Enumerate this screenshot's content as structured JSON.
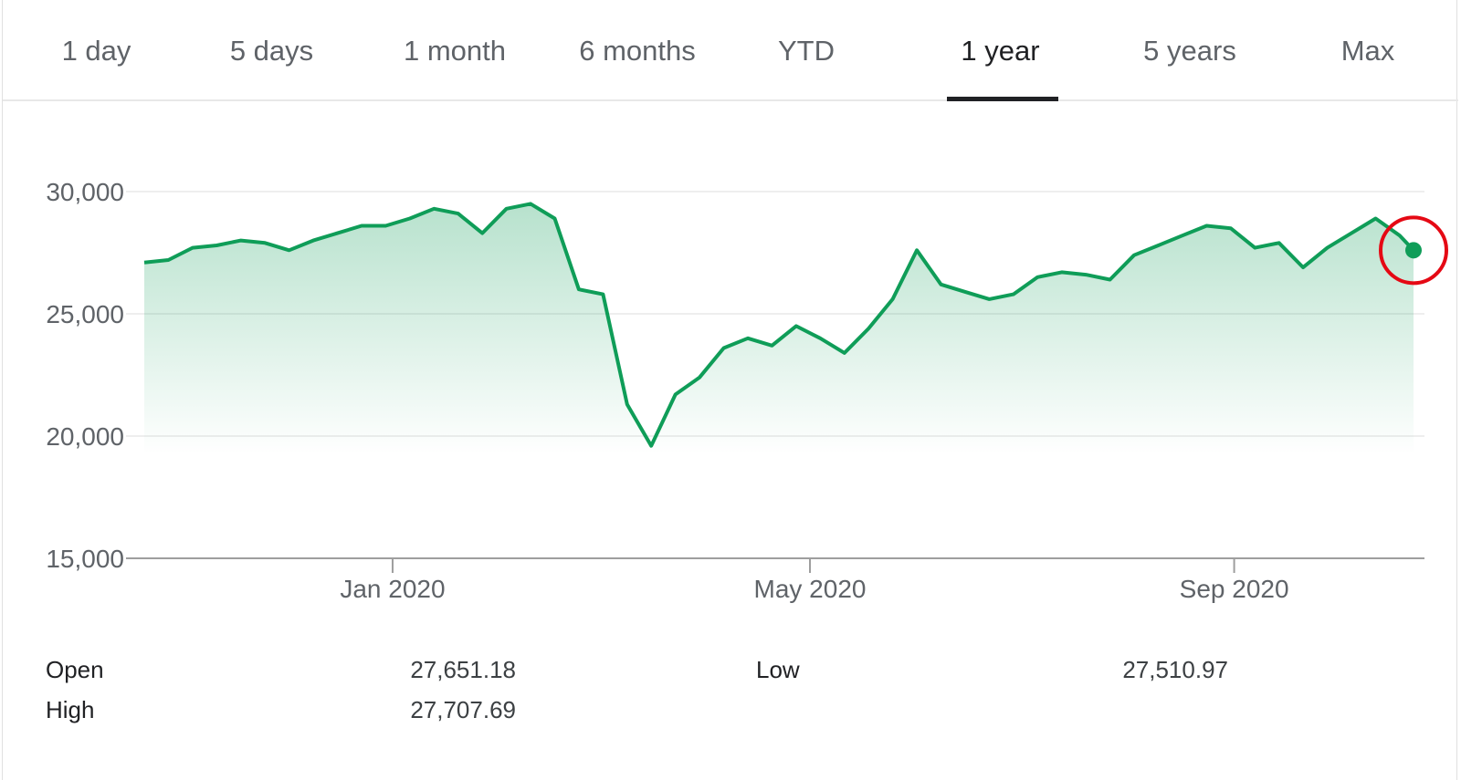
{
  "tabs": [
    {
      "label": "1 day",
      "active": false
    },
    {
      "label": "5 days",
      "active": false
    },
    {
      "label": "1 month",
      "active": false
    },
    {
      "label": "6 months",
      "active": false
    },
    {
      "label": "YTD",
      "active": false
    },
    {
      "label": "1 year",
      "active": true
    },
    {
      "label": "5 years",
      "active": false
    },
    {
      "label": "Max",
      "active": false
    }
  ],
  "stats": {
    "open_label": "Open",
    "open_value": "27,651.18",
    "high_label": "High",
    "high_value": "27,707.69",
    "low_label": "Low",
    "low_value": "27,510.97"
  },
  "colors": {
    "line": "#0f9d58",
    "highlight_ring": "#e50914"
  },
  "chart_data": {
    "type": "area",
    "ylim": [
      15000,
      30000
    ],
    "yticks": [
      15000,
      20000,
      25000,
      30000
    ],
    "ytick_labels": [
      "15,000",
      "20,000",
      "25,000",
      "30,000"
    ],
    "xtick_labels": [
      "Jan 2020",
      "May 2020",
      "Sep 2020"
    ],
    "xticks": [
      "2020-01-01",
      "2020-05-01",
      "2020-09-01"
    ],
    "series": [
      {
        "x": [
          "2019-10-21",
          "2019-10-28",
          "2019-11-04",
          "2019-11-11",
          "2019-11-18",
          "2019-11-25",
          "2019-12-02",
          "2019-12-09",
          "2019-12-16",
          "2019-12-23",
          "2019-12-30",
          "2020-01-06",
          "2020-01-13",
          "2020-01-20",
          "2020-01-27",
          "2020-02-03",
          "2020-02-10",
          "2020-02-17",
          "2020-02-24",
          "2020-03-02",
          "2020-03-09",
          "2020-03-16",
          "2020-03-23",
          "2020-03-30",
          "2020-04-06",
          "2020-04-13",
          "2020-04-20",
          "2020-04-27",
          "2020-05-04",
          "2020-05-11",
          "2020-05-18",
          "2020-05-25",
          "2020-06-01",
          "2020-06-08",
          "2020-06-15",
          "2020-06-22",
          "2020-06-29",
          "2020-07-06",
          "2020-07-13",
          "2020-07-20",
          "2020-07-27",
          "2020-08-03",
          "2020-08-10",
          "2020-08-17",
          "2020-08-24",
          "2020-08-31",
          "2020-09-07",
          "2020-09-14",
          "2020-09-21",
          "2020-09-28",
          "2020-10-05",
          "2020-10-12",
          "2020-10-19",
          "2020-10-23"
        ],
        "values": [
          27100,
          27200,
          27700,
          27800,
          28000,
          27900,
          27600,
          28000,
          28300,
          28600,
          28600,
          28900,
          29300,
          29100,
          28300,
          29300,
          29500,
          28900,
          26000,
          25800,
          21300,
          19600,
          21700,
          22400,
          23600,
          24000,
          23700,
          24500,
          24000,
          23400,
          24400,
          25600,
          27600,
          26200,
          25900,
          25600,
          25800,
          26500,
          26700,
          26600,
          26400,
          27400,
          27800,
          28200,
          28600,
          28500,
          27700,
          27900,
          26900,
          27700,
          28300,
          28900,
          28200,
          27600
        ]
      }
    ]
  }
}
